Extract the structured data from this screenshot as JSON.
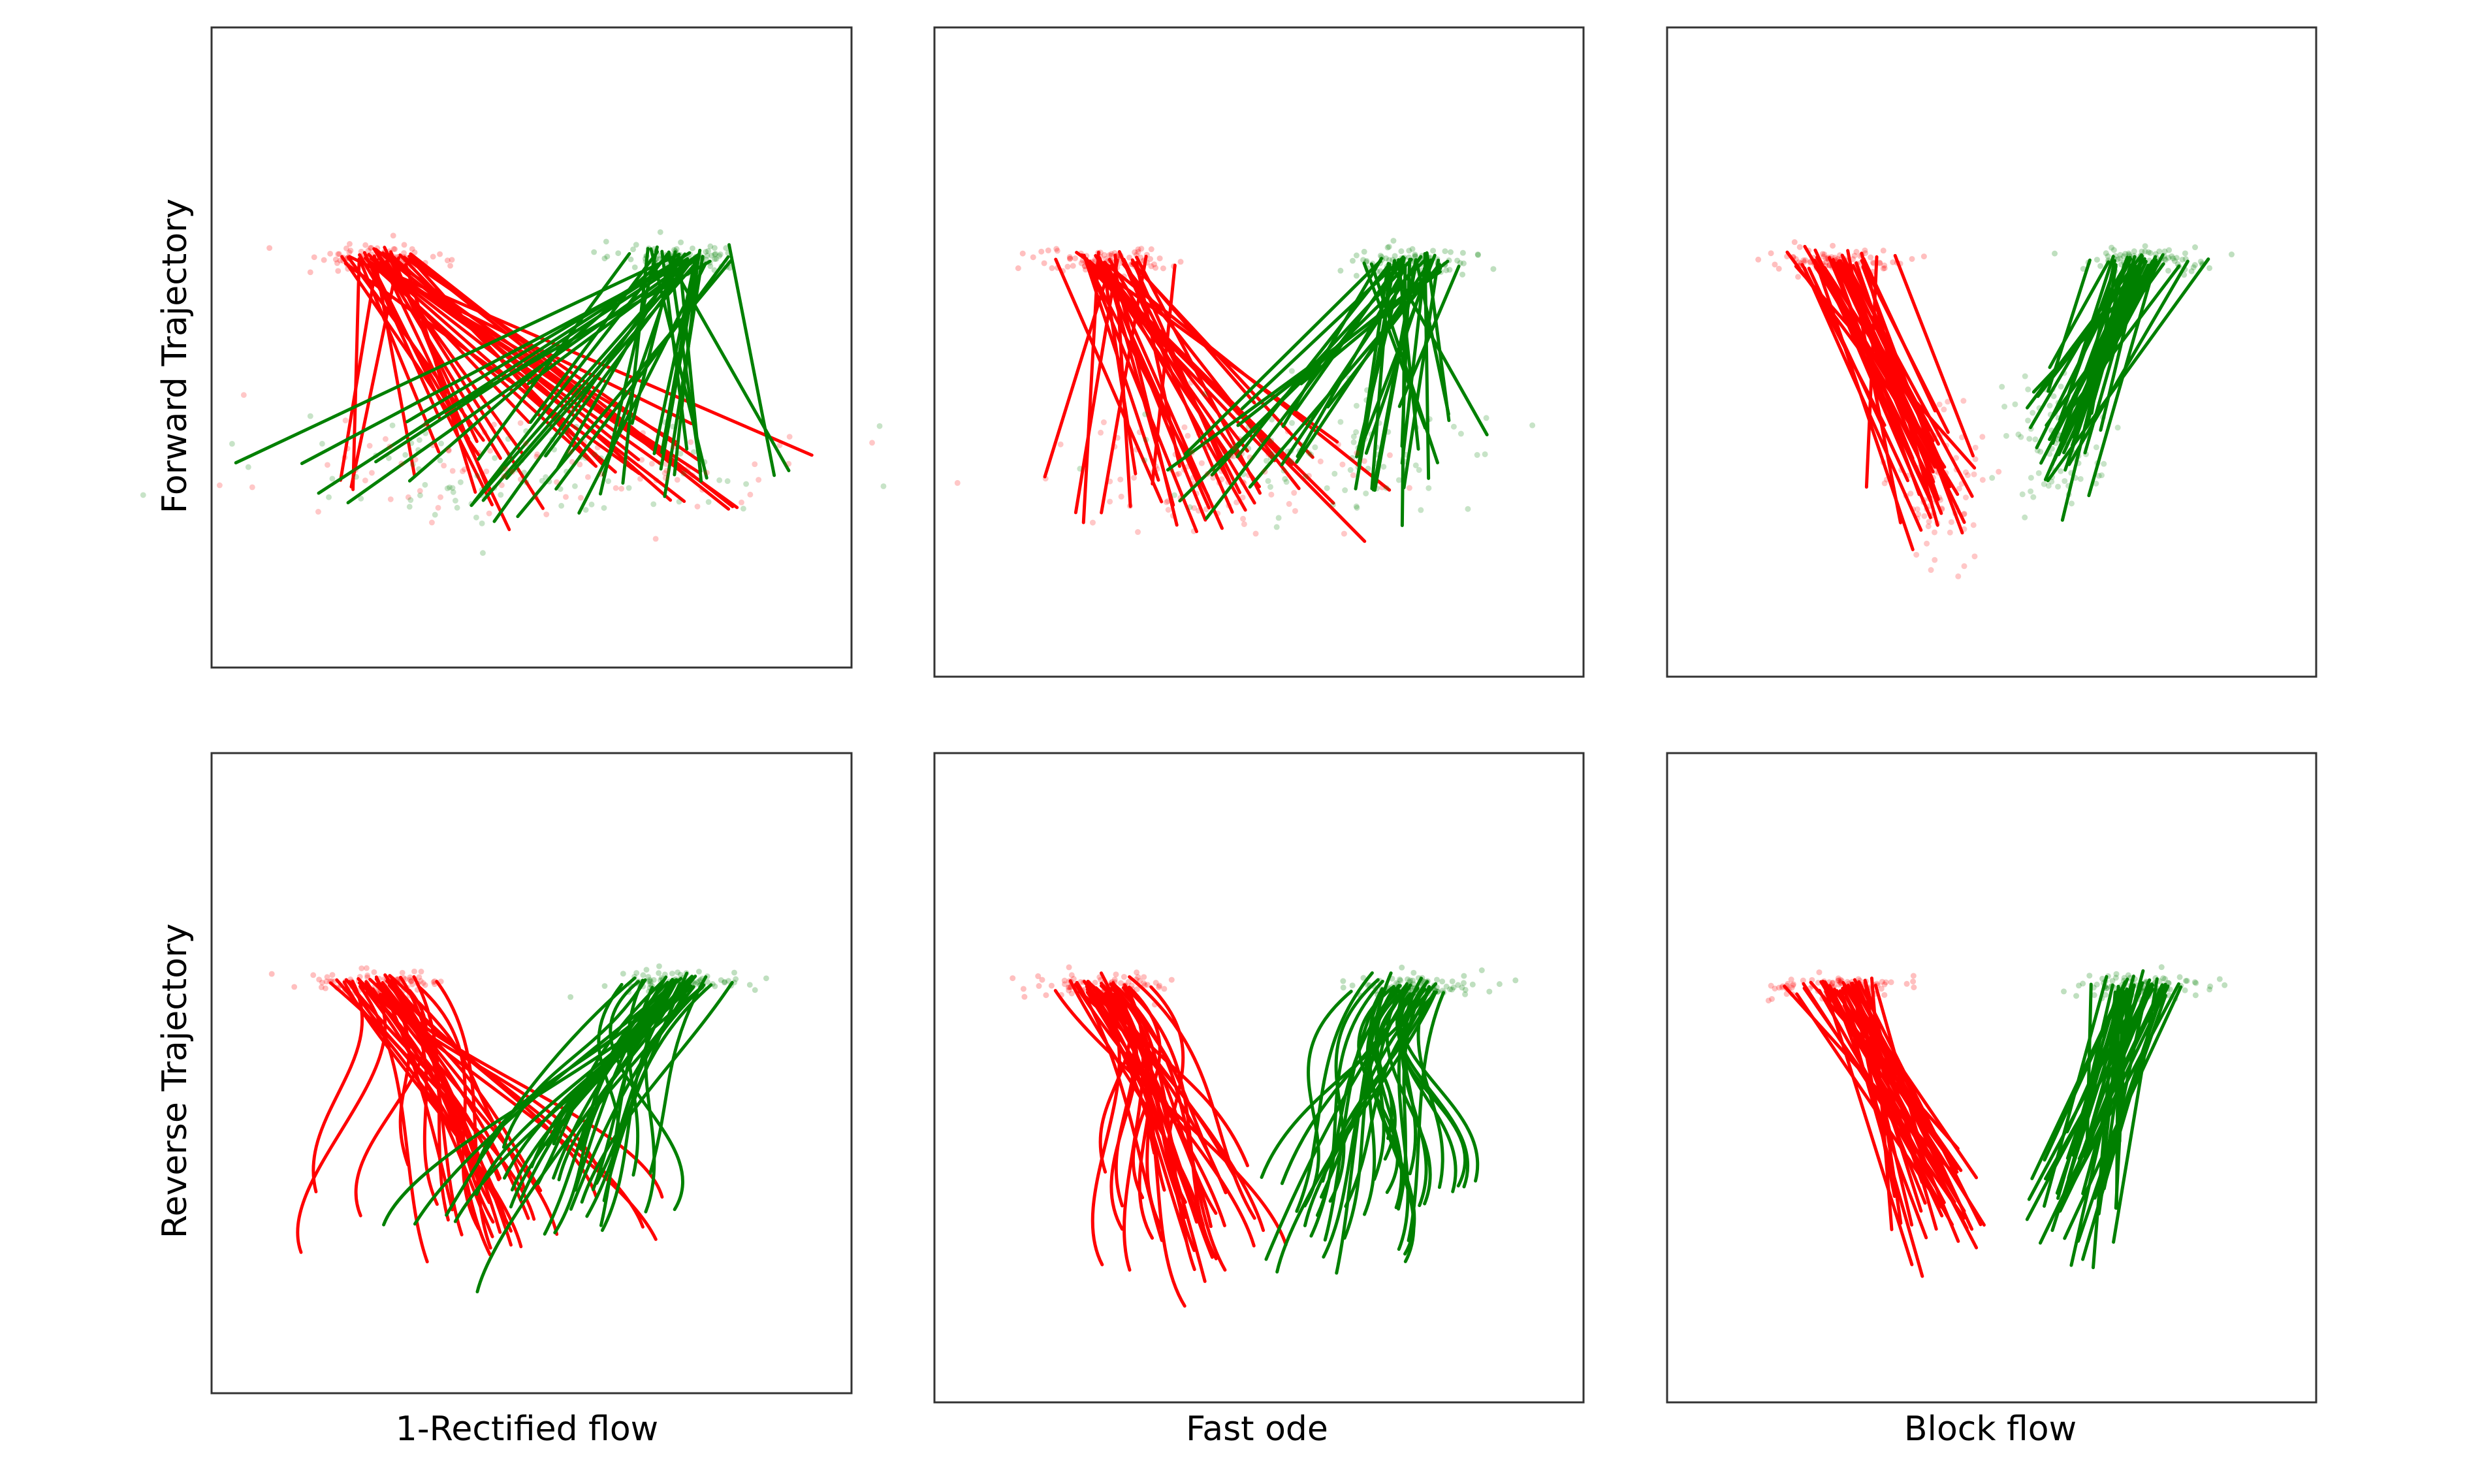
{
  "figure": {
    "columns": [
      "1-Rectified flow",
      "Fast ode",
      "Block flow"
    ],
    "rows": [
      "Forward Trajectory",
      "Reverse Trajectory"
    ]
  },
  "chart_data": [
    {
      "type": "scatter",
      "row": "Forward Trajectory",
      "column": "1-Rectified flow",
      "method": "straight",
      "source_centers": [
        [
          -0.45,
          0.32
        ],
        [
          0.45,
          0.32
        ]
      ],
      "target_center": [
        0.0,
        -0.25
      ],
      "target_spread": [
        0.35,
        0.05
      ],
      "grid": false,
      "ticks": false
    },
    {
      "type": "scatter",
      "row": "Forward Trajectory",
      "column": "Fast ode",
      "method": "straight",
      "source_centers": [
        [
          -0.45,
          0.32
        ],
        [
          0.45,
          0.32
        ]
      ],
      "target_centers": [
        [
          -0.15,
          -0.25
        ],
        [
          0.18,
          -0.22
        ]
      ],
      "grid": false,
      "ticks": false
    },
    {
      "type": "scatter",
      "row": "Forward Trajectory",
      "column": "Block flow",
      "method": "straight",
      "source_centers": [
        [
          -0.45,
          0.32
        ],
        [
          0.45,
          0.32
        ]
      ],
      "target_centers": [
        [
          -0.18,
          -0.25
        ],
        [
          0.12,
          -0.2
        ]
      ],
      "grid": false,
      "ticks": false
    },
    {
      "type": "line",
      "row": "Reverse Trajectory",
      "column": "1-Rectified flow",
      "method": "curved",
      "source_centers": [
        [
          -0.45,
          0.32
        ],
        [
          0.45,
          0.32
        ]
      ],
      "grid": false,
      "ticks": false
    },
    {
      "type": "line",
      "row": "Reverse Trajectory",
      "column": "Fast ode",
      "method": "curved",
      "source_centers": [
        [
          -0.45,
          0.32
        ],
        [
          0.45,
          0.32
        ]
      ],
      "grid": false,
      "ticks": false
    },
    {
      "type": "line",
      "row": "Reverse Trajectory",
      "column": "Block flow",
      "method": "straight",
      "source_centers": [
        [
          -0.45,
          0.32
        ],
        [
          0.45,
          0.32
        ]
      ],
      "grid": false,
      "ticks": false
    }
  ],
  "colors": {
    "class_a": "#ff0000",
    "class_b": "#008000",
    "frame": "#333333"
  }
}
